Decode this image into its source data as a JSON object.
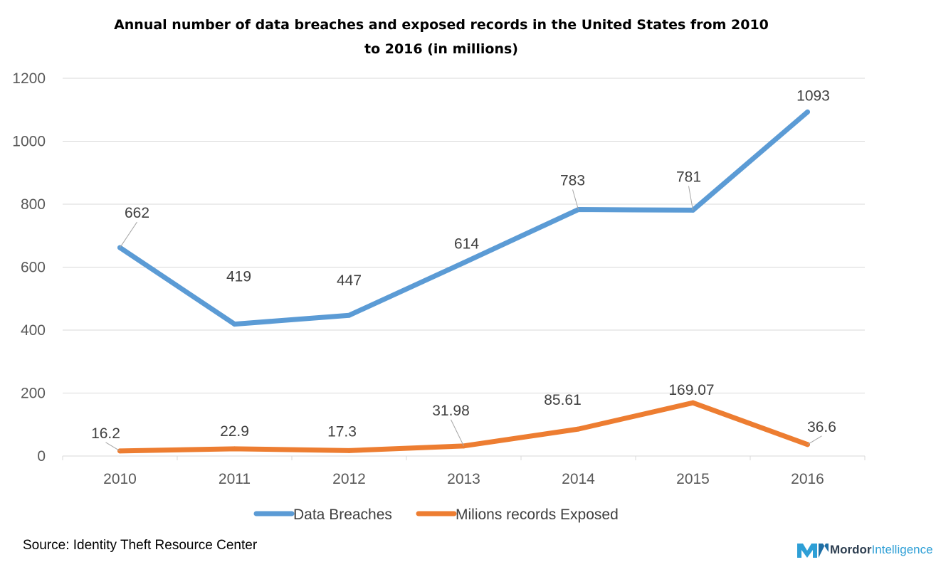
{
  "chart_data": {
    "type": "line",
    "title": "Annual number of data breaches and exposed records in the United States from 2010 to 2016 (in millions)",
    "title_lines": [
      "Annual number of data breaches and exposed records in the United States from 2010",
      "to 2016 (in millions)"
    ],
    "categories": [
      "2010",
      "2011",
      "2012",
      "2013",
      "2014",
      "2015",
      "2016"
    ],
    "series": [
      {
        "name": "Data Breaches",
        "values": [
          662,
          419,
          447,
          614,
          783,
          781,
          1093
        ],
        "labels": [
          "662",
          "419",
          "447",
          "614",
          "783",
          "781",
          "1093"
        ],
        "color": "#5b9bd5"
      },
      {
        "name": "Milions records Exposed",
        "values": [
          16.2,
          22.9,
          17.3,
          31.98,
          85.61,
          169.07,
          36.6
        ],
        "labels": [
          "16.2",
          "22.9",
          "17.3",
          "31.98",
          "85.61",
          "169.07",
          "36.6"
        ],
        "color": "#ed7d31"
      }
    ],
    "yticks": [
      "0",
      "200",
      "400",
      "600",
      "800",
      "1000",
      "1200"
    ],
    "ylim": [
      0,
      1200
    ],
    "grid": true,
    "legend_position": "bottom",
    "xlabel": "",
    "ylabel": ""
  },
  "source": "Source: Identity Theft Resource Center",
  "logo": {
    "name_bold": "Mordor",
    "name_light": "Intelligence",
    "icon": "mordor-intelligence-logo-icon"
  }
}
